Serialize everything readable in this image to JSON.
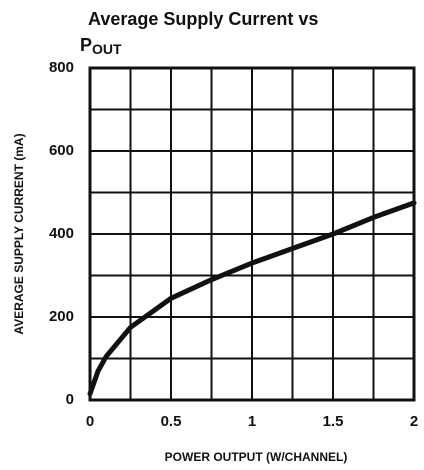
{
  "chart_data": {
    "type": "line",
    "title": "Average Supply Current vs",
    "title_symbol": "P",
    "title_subscript": "OUT",
    "xlabel": "POWER OUTPUT (W/CHANNEL)",
    "ylabel": "AVERAGE SUPPLY CURRENT (mA)",
    "x": [
      0,
      0.05,
      0.1,
      0.25,
      0.5,
      0.75,
      1,
      1.25,
      1.5,
      1.75,
      2
    ],
    "series": [
      {
        "name": "Supply Current",
        "color": "#111111",
        "values": [
          15,
          70,
          105,
          175,
          245,
          290,
          330,
          365,
          400,
          440,
          475
        ]
      }
    ],
    "xlim": [
      0,
      2
    ],
    "xticks": [
      0,
      0.5,
      1,
      1.5,
      2
    ],
    "ylim": [
      0,
      800
    ],
    "yticks": [
      0,
      200,
      400,
      600,
      800
    ],
    "grid": true
  }
}
